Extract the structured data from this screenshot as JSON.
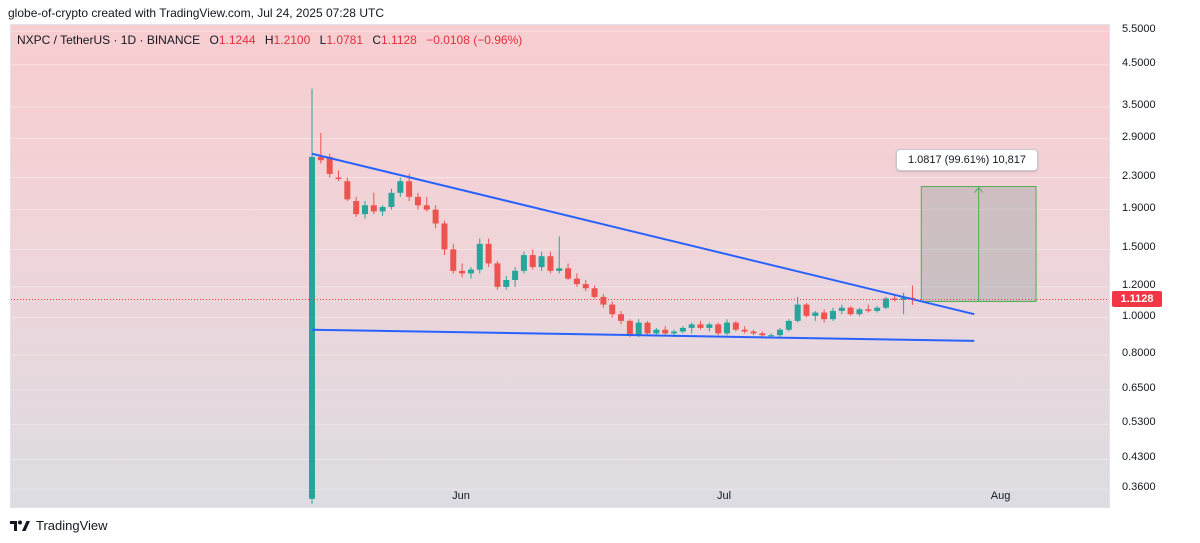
{
  "header": {
    "attribution": "globe-of-crypto created with TradingView.com, Jul 24, 2025 07:28 UTC"
  },
  "legend": {
    "symbol": "NXPC / TetherUS · 1D · BINANCE",
    "open_label": "O",
    "open": "1.1244",
    "high_label": "H",
    "high": "1.2100",
    "low_label": "L",
    "low": "1.0781",
    "close_label": "C",
    "close": "1.1128",
    "change": "−0.0108 (−0.96%)"
  },
  "price_tag": "1.1128",
  "measure": {
    "label": "1.0817 (99.61%) 10,817"
  },
  "brand": {
    "name": "TradingView",
    "icon": "tradingview-logo-icon"
  },
  "colors": {
    "up": "#26a69a",
    "down": "#ef5350",
    "trendline": "#2962ff",
    "measure": "#4caf50"
  },
  "chart_data": {
    "type": "candlestick",
    "title": "NXPC / TetherUS · 1D · BINANCE",
    "y_scale": "log",
    "ylim": [
      0.32,
      5.7
    ],
    "y_ticks": [
      "5.5000",
      "4.5000",
      "3.5000",
      "2.9000",
      "2.3000",
      "1.9000",
      "1.5000",
      "1.2000",
      "1.0000",
      "0.8000",
      "0.6500",
      "0.5300",
      "0.4300",
      "0.3600"
    ],
    "x_ticks": [
      {
        "label": "Jun",
        "day": 17
      },
      {
        "label": "Jul",
        "day": 47
      },
      {
        "label": "Aug",
        "day": 78
      }
    ],
    "candles": [
      {
        "o": 0.34,
        "h": 3.9,
        "l": 0.33,
        "c": 2.6
      },
      {
        "o": 2.6,
        "h": 3.0,
        "l": 2.5,
        "c": 2.55
      },
      {
        "o": 2.6,
        "h": 2.65,
        "l": 2.3,
        "c": 2.35
      },
      {
        "o": 2.3,
        "h": 2.4,
        "l": 2.25,
        "c": 2.28
      },
      {
        "o": 2.25,
        "h": 2.3,
        "l": 2.0,
        "c": 2.02
      },
      {
        "o": 2.0,
        "h": 2.05,
        "l": 1.82,
        "c": 1.85
      },
      {
        "o": 1.85,
        "h": 2.0,
        "l": 1.8,
        "c": 1.95
      },
      {
        "o": 1.95,
        "h": 2.1,
        "l": 1.85,
        "c": 1.88
      },
      {
        "o": 1.88,
        "h": 1.95,
        "l": 1.83,
        "c": 1.93
      },
      {
        "o": 1.93,
        "h": 2.15,
        "l": 1.9,
        "c": 2.1
      },
      {
        "o": 2.1,
        "h": 2.3,
        "l": 2.05,
        "c": 2.25
      },
      {
        "o": 2.25,
        "h": 2.35,
        "l": 2.0,
        "c": 2.05
      },
      {
        "o": 2.05,
        "h": 2.1,
        "l": 1.9,
        "c": 1.95
      },
      {
        "o": 1.95,
        "h": 2.05,
        "l": 1.88,
        "c": 1.9
      },
      {
        "o": 1.9,
        "h": 1.95,
        "l": 1.7,
        "c": 1.75
      },
      {
        "o": 1.75,
        "h": 1.78,
        "l": 1.45,
        "c": 1.5
      },
      {
        "o": 1.5,
        "h": 1.55,
        "l": 1.3,
        "c": 1.32
      },
      {
        "o": 1.32,
        "h": 1.38,
        "l": 1.27,
        "c": 1.3
      },
      {
        "o": 1.3,
        "h": 1.35,
        "l": 1.26,
        "c": 1.33
      },
      {
        "o": 1.33,
        "h": 1.6,
        "l": 1.3,
        "c": 1.55
      },
      {
        "o": 1.55,
        "h": 1.6,
        "l": 1.35,
        "c": 1.38
      },
      {
        "o": 1.38,
        "h": 1.4,
        "l": 1.18,
        "c": 1.2
      },
      {
        "o": 1.2,
        "h": 1.28,
        "l": 1.18,
        "c": 1.25
      },
      {
        "o": 1.25,
        "h": 1.35,
        "l": 1.2,
        "c": 1.32
      },
      {
        "o": 1.32,
        "h": 1.48,
        "l": 1.3,
        "c": 1.45
      },
      {
        "o": 1.45,
        "h": 1.5,
        "l": 1.33,
        "c": 1.35
      },
      {
        "o": 1.35,
        "h": 1.48,
        "l": 1.32,
        "c": 1.44
      },
      {
        "o": 1.44,
        "h": 1.48,
        "l": 1.3,
        "c": 1.32
      },
      {
        "o": 1.32,
        "h": 1.62,
        "l": 1.3,
        "c": 1.34
      },
      {
        "o": 1.34,
        "h": 1.38,
        "l": 1.25,
        "c": 1.26
      },
      {
        "o": 1.26,
        "h": 1.3,
        "l": 1.2,
        "c": 1.22
      },
      {
        "o": 1.22,
        "h": 1.25,
        "l": 1.17,
        "c": 1.19
      },
      {
        "o": 1.19,
        "h": 1.21,
        "l": 1.12,
        "c": 1.13
      },
      {
        "o": 1.13,
        "h": 1.15,
        "l": 1.06,
        "c": 1.08
      },
      {
        "o": 1.08,
        "h": 1.1,
        "l": 1.0,
        "c": 1.02
      },
      {
        "o": 1.02,
        "h": 1.04,
        "l": 0.96,
        "c": 0.98
      },
      {
        "o": 0.98,
        "h": 0.99,
        "l": 0.89,
        "c": 0.9
      },
      {
        "o": 0.9,
        "h": 0.99,
        "l": 0.89,
        "c": 0.97
      },
      {
        "o": 0.97,
        "h": 0.98,
        "l": 0.9,
        "c": 0.91
      },
      {
        "o": 0.91,
        "h": 0.94,
        "l": 0.9,
        "c": 0.93
      },
      {
        "o": 0.93,
        "h": 0.95,
        "l": 0.9,
        "c": 0.91
      },
      {
        "o": 0.91,
        "h": 0.93,
        "l": 0.89,
        "c": 0.92
      },
      {
        "o": 0.92,
        "h": 0.95,
        "l": 0.91,
        "c": 0.94
      },
      {
        "o": 0.94,
        "h": 0.97,
        "l": 0.91,
        "c": 0.96
      },
      {
        "o": 0.96,
        "h": 0.98,
        "l": 0.93,
        "c": 0.94
      },
      {
        "o": 0.94,
        "h": 0.97,
        "l": 0.92,
        "c": 0.96
      },
      {
        "o": 0.96,
        "h": 0.97,
        "l": 0.9,
        "c": 0.91
      },
      {
        "o": 0.91,
        "h": 0.99,
        "l": 0.9,
        "c": 0.97
      },
      {
        "o": 0.97,
        "h": 0.98,
        "l": 0.92,
        "c": 0.93
      },
      {
        "o": 0.93,
        "h": 0.95,
        "l": 0.91,
        "c": 0.92
      },
      {
        "o": 0.92,
        "h": 0.93,
        "l": 0.9,
        "c": 0.91
      },
      {
        "o": 0.91,
        "h": 0.92,
        "l": 0.89,
        "c": 0.9
      },
      {
        "o": 0.9,
        "h": 0.91,
        "l": 0.89,
        "c": 0.9
      },
      {
        "o": 0.9,
        "h": 0.94,
        "l": 0.89,
        "c": 0.93
      },
      {
        "o": 0.93,
        "h": 0.99,
        "l": 0.92,
        "c": 0.98
      },
      {
        "o": 0.98,
        "h": 1.13,
        "l": 0.97,
        "c": 1.08
      },
      {
        "o": 1.08,
        "h": 1.09,
        "l": 1.0,
        "c": 1.01
      },
      {
        "o": 1.01,
        "h": 1.04,
        "l": 0.98,
        "c": 1.03
      },
      {
        "o": 1.03,
        "h": 1.05,
        "l": 0.97,
        "c": 0.99
      },
      {
        "o": 0.99,
        "h": 1.06,
        "l": 0.98,
        "c": 1.04
      },
      {
        "o": 1.04,
        "h": 1.08,
        "l": 1.02,
        "c": 1.06
      },
      {
        "o": 1.06,
        "h": 1.07,
        "l": 1.01,
        "c": 1.02
      },
      {
        "o": 1.02,
        "h": 1.06,
        "l": 1.01,
        "c": 1.05
      },
      {
        "o": 1.05,
        "h": 1.08,
        "l": 1.03,
        "c": 1.04
      },
      {
        "o": 1.04,
        "h": 1.07,
        "l": 1.03,
        "c": 1.06
      },
      {
        "o": 1.06,
        "h": 1.13,
        "l": 1.05,
        "c": 1.12
      },
      {
        "o": 1.12,
        "h": 1.15,
        "l": 1.1,
        "c": 1.11
      },
      {
        "o": 1.11,
        "h": 1.16,
        "l": 1.02,
        "c": 1.1244
      },
      {
        "o": 1.1244,
        "h": 1.21,
        "l": 1.0781,
        "c": 1.1128
      }
    ],
    "trendlines": [
      {
        "name": "upper",
        "from": {
          "day": 0,
          "price": 2.65
        },
        "to": {
          "day": 75,
          "price": 1.02
        }
      },
      {
        "name": "lower",
        "from": {
          "day": 0,
          "price": 0.93
        },
        "to": {
          "day": 75,
          "price": 0.87
        }
      }
    ],
    "measure": {
      "from_price": 1.1,
      "to_price": 2.18,
      "start_day": 69,
      "end_day": 82,
      "change": "1.0817",
      "percent": "99.61%",
      "ticks": "10,817"
    },
    "last_price": 1.1128
  }
}
